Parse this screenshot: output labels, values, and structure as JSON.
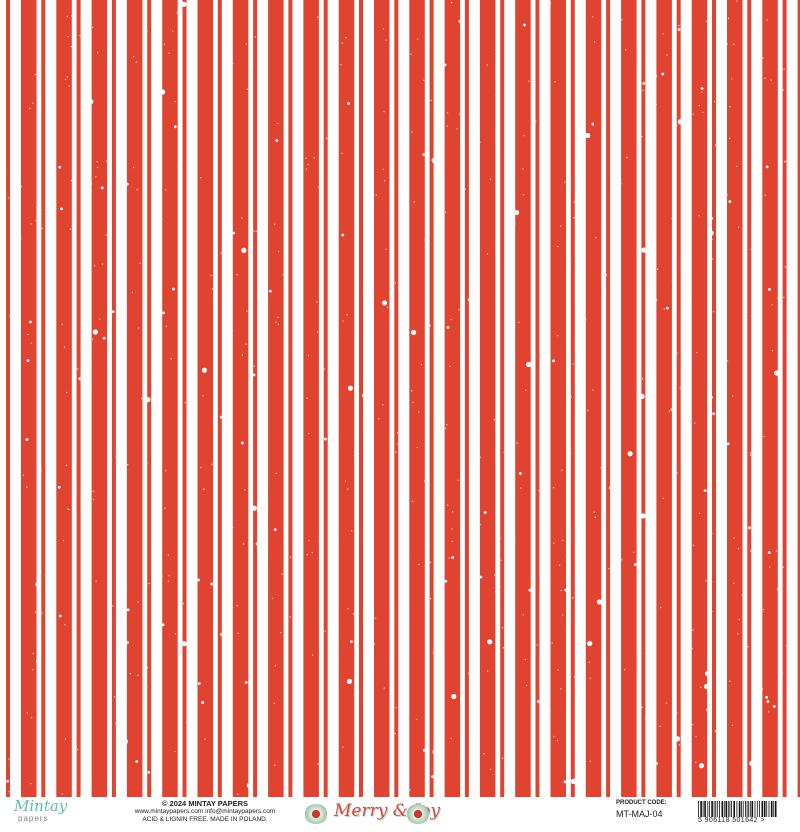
{
  "paper": {
    "pattern": "vertical-stripes-with-snow-speckles",
    "colors": {
      "stripe": "#e0432f",
      "background": "#ffffff",
      "brand_text": "#e0443a",
      "logo": "#5cbfb0"
    }
  },
  "footer": {
    "logo": {
      "line1": "Mintay",
      "line2": "papers"
    },
    "copyright": "© 2024 MINTAY PAPERS",
    "contacts": "www.mintaypapers.com   info@mintaypapers.com",
    "notice": "ACID & LIGNIN FREE. MADE IN POLAND.",
    "collection_title": "Merry & Joy",
    "product_code_label": "PRODUCT CODE:",
    "product_code": "MT-MAJ-04",
    "barcode_number": "5 906118 501642 >"
  }
}
